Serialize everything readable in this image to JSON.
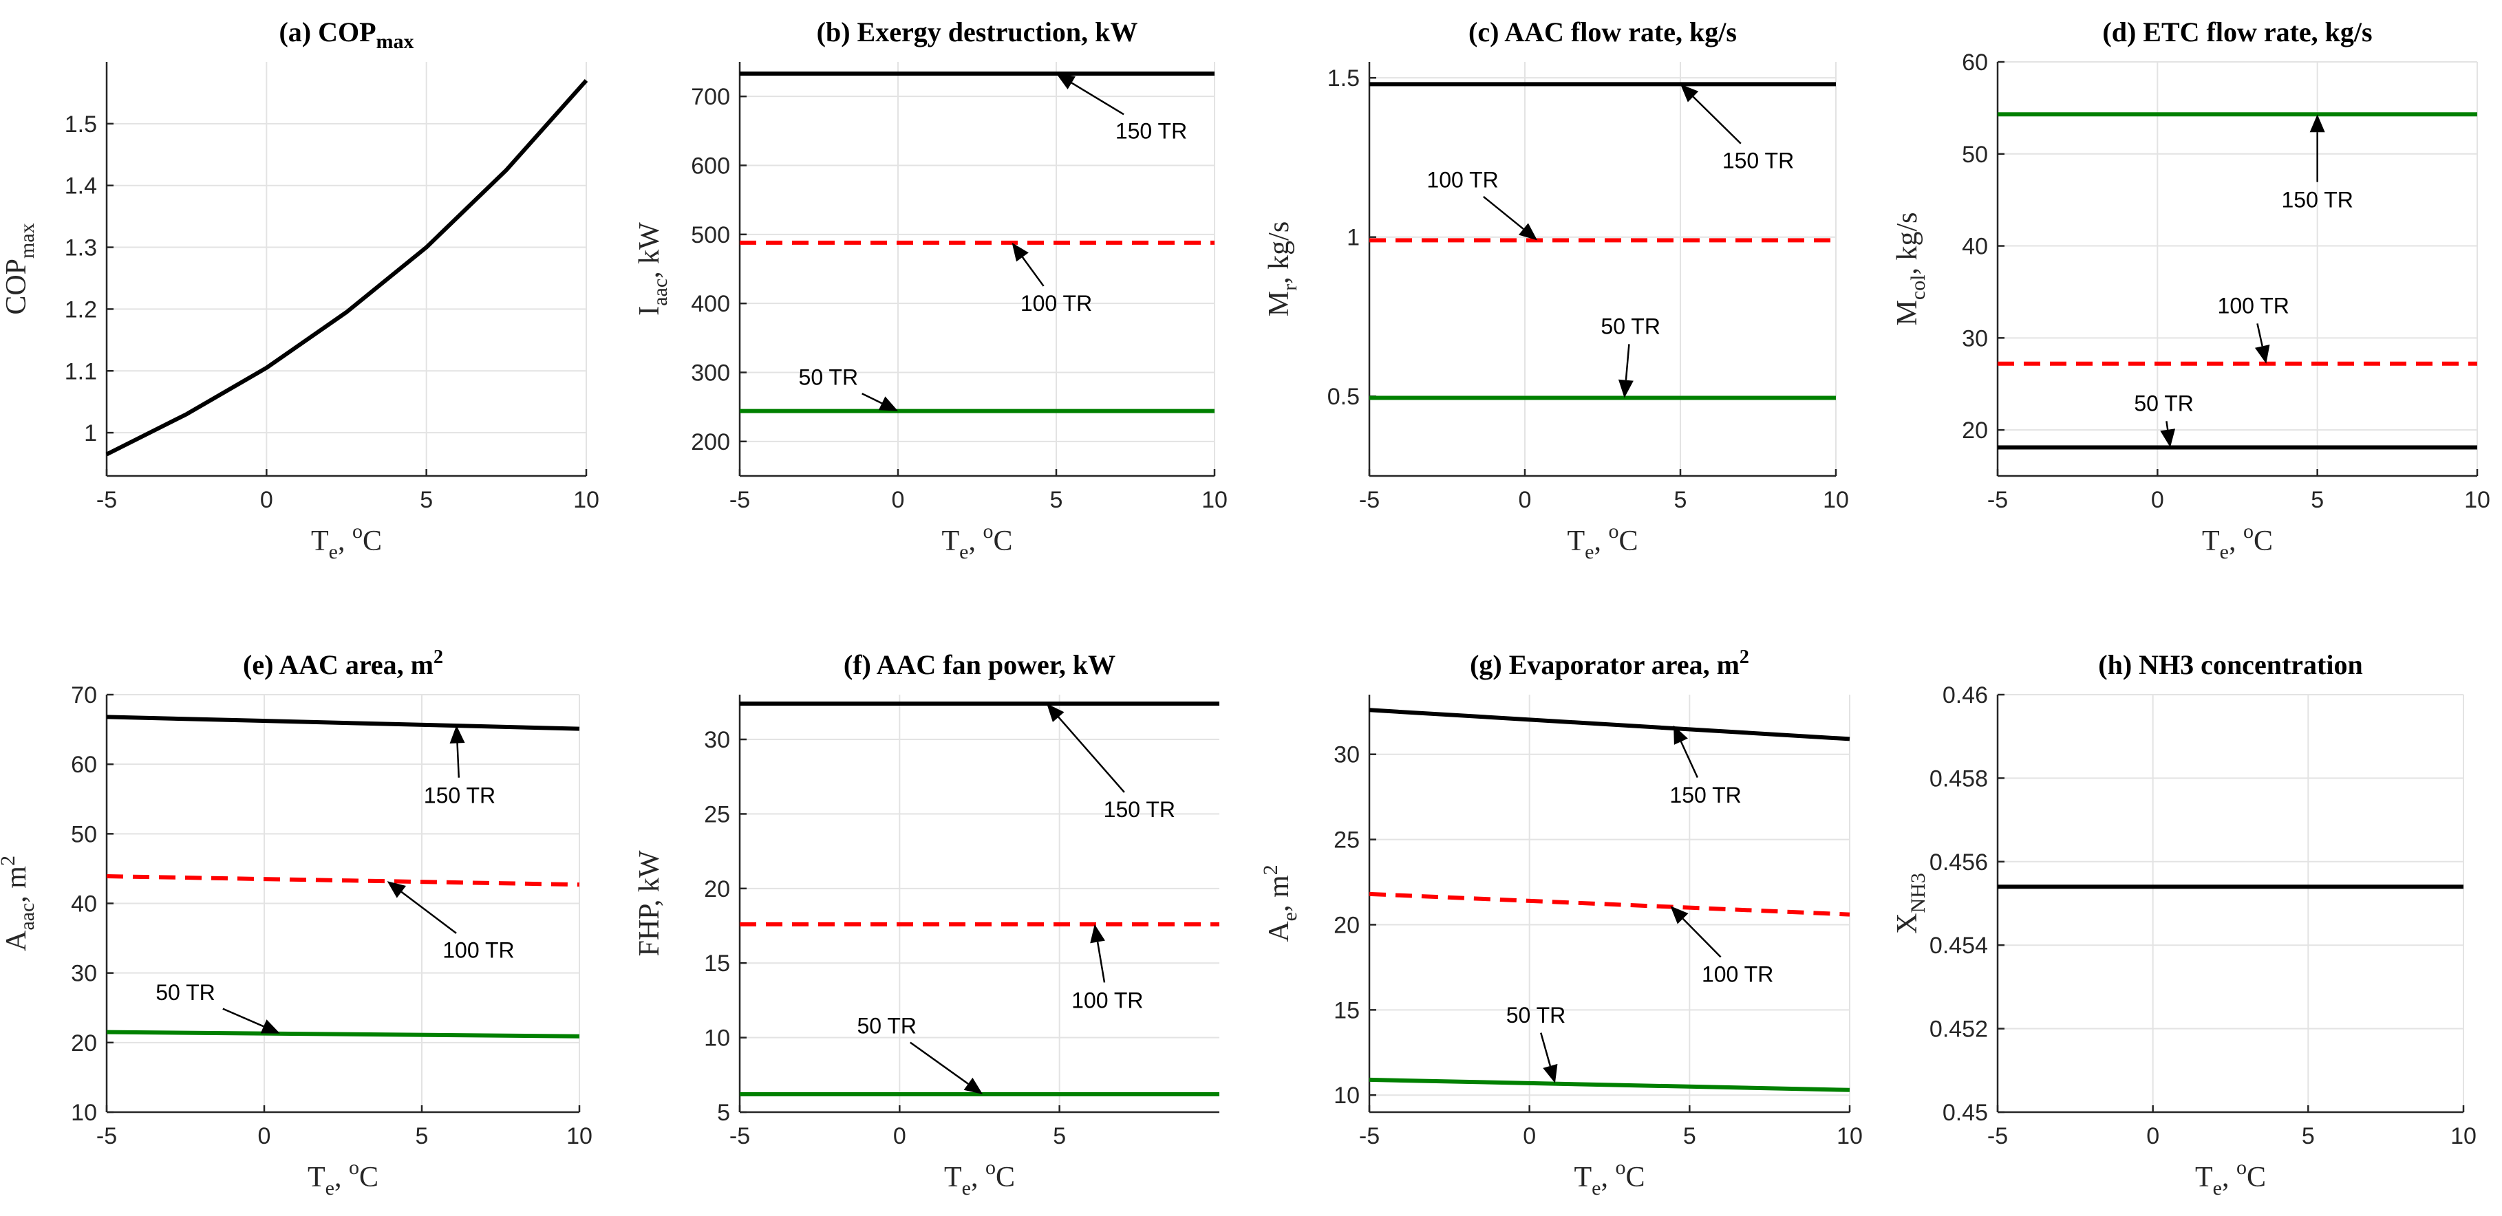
{
  "chart_data": [
    {
      "id": "a",
      "type": "line",
      "title": "(a) COP",
      "title_sub": "max",
      "xlabel_main": "T",
      "xlabel_sub": "e",
      "xlabel_sup": "o",
      "xlabel_tail": "C",
      "ylabel_main": "COP",
      "ylabel_sub": "max",
      "ylabel_tail": "",
      "xlim": [
        -5,
        10
      ],
      "ylim": [
        0.93,
        1.6
      ],
      "xticks": [
        -5,
        0,
        5,
        10
      ],
      "xtick_labels": [
        "-5",
        "0",
        "5",
        "10"
      ],
      "yticks": [
        1,
        1.1,
        1.2,
        1.3,
        1.4,
        1.5
      ],
      "ytick_labels": [
        "1",
        "1.1",
        "1.2",
        "1.3",
        "1.4",
        "1.5"
      ],
      "series": [
        {
          "name": "COPmax",
          "color": "#000000",
          "dash": "solid",
          "x": [
            -5,
            -2.5,
            0,
            2.5,
            5,
            7.5,
            10
          ],
          "y": [
            0.965,
            1.03,
            1.105,
            1.195,
            1.3,
            1.425,
            1.57
          ]
        }
      ],
      "annotations": []
    },
    {
      "id": "b",
      "type": "line",
      "title": "(b) Exergy destruction, kW",
      "xlabel_main": "T",
      "xlabel_sub": "e",
      "xlabel_sup": "o",
      "xlabel_tail": "C",
      "ylabel_main": "I",
      "ylabel_sub": "aac",
      "ylabel_tail": ", kW",
      "xlim": [
        -5,
        10
      ],
      "ylim": [
        150,
        750
      ],
      "xticks": [
        -5,
        0,
        5,
        10
      ],
      "xtick_labels": [
        "-5",
        "0",
        "5",
        "10"
      ],
      "yticks": [
        200,
        300,
        400,
        500,
        600,
        700
      ],
      "ytick_labels": [
        "200",
        "300",
        "400",
        "500",
        "600",
        "700"
      ],
      "series": [
        {
          "name": "150 TR",
          "color": "#000000",
          "dash": "solid",
          "x": [
            -5,
            10
          ],
          "y": [
            733,
            733
          ]
        },
        {
          "name": "100 TR",
          "color": "#ff0000",
          "dash": "dashed",
          "x": [
            -5,
            10
          ],
          "y": [
            488,
            488
          ]
        },
        {
          "name": "50 TR",
          "color": "#008000",
          "dash": "solid",
          "x": [
            -5,
            10
          ],
          "y": [
            244,
            244
          ]
        }
      ],
      "annotations": [
        {
          "text": "150 TR",
          "label_x": 8,
          "label_y": 650,
          "tip_x": 5,
          "tip_y": 733
        },
        {
          "text": "100 TR",
          "label_x": 5,
          "label_y": 400,
          "tip_x": 3.6,
          "tip_y": 488
        },
        {
          "text": "50 TR",
          "label_x": -2.2,
          "label_y": 293,
          "tip_x": 0,
          "tip_y": 244
        }
      ]
    },
    {
      "id": "c",
      "type": "line",
      "title": "(c) AAC flow rate, kg/s",
      "xlabel_main": "T",
      "xlabel_sub": "e",
      "xlabel_sup": "o",
      "xlabel_tail": "C",
      "ylabel_main": "M",
      "ylabel_sub": "r",
      "ylabel_tail": ", kg/s",
      "xlim": [
        -5,
        10
      ],
      "ylim": [
        0.25,
        1.55
      ],
      "xticks": [
        -5,
        0,
        5,
        10
      ],
      "xtick_labels": [
        "-5",
        "0",
        "5",
        "10"
      ],
      "yticks": [
        0.5,
        1,
        1.5
      ],
      "ytick_labels": [
        "0.5",
        "1",
        "1.5"
      ],
      "series": [
        {
          "name": "150 TR",
          "color": "#000000",
          "dash": "solid",
          "x": [
            -5,
            10
          ],
          "y": [
            1.48,
            1.48
          ]
        },
        {
          "name": "100 TR",
          "color": "#ff0000",
          "dash": "dashed",
          "x": [
            -5,
            10
          ],
          "y": [
            0.99,
            0.99
          ]
        },
        {
          "name": "50 TR",
          "color": "#008000",
          "dash": "solid",
          "x": [
            -5,
            10
          ],
          "y": [
            0.495,
            0.495
          ]
        }
      ],
      "annotations": [
        {
          "text": "150 TR",
          "label_x": 7.5,
          "label_y": 1.24,
          "tip_x": 5,
          "tip_y": 1.48
        },
        {
          "text": "100 TR",
          "label_x": -2,
          "label_y": 1.18,
          "tip_x": 0.4,
          "tip_y": 0.99
        },
        {
          "text": "50 TR",
          "label_x": 3.4,
          "label_y": 0.72,
          "tip_x": 3.2,
          "tip_y": 0.495
        }
      ]
    },
    {
      "id": "d",
      "type": "line",
      "title": "(d) ETC flow rate, kg/s",
      "xlabel_main": "T",
      "xlabel_sub": "e",
      "xlabel_sup": "o",
      "xlabel_tail": "C",
      "ylabel_main": "M",
      "ylabel_sub": "col",
      "ylabel_tail": ", kg/s",
      "xlim": [
        -5,
        10
      ],
      "ylim": [
        15,
        60
      ],
      "xticks": [
        -5,
        0,
        5,
        10
      ],
      "xtick_labels": [
        "-5",
        "0",
        "5",
        "10"
      ],
      "yticks": [
        20,
        30,
        40,
        50,
        60
      ],
      "ytick_labels": [
        "20",
        "30",
        "40",
        "50",
        "60"
      ],
      "series": [
        {
          "name": "150 TR",
          "color": "#008000",
          "dash": "solid",
          "x": [
            -5,
            10
          ],
          "y": [
            54.3,
            54.3
          ]
        },
        {
          "name": "100 TR",
          "color": "#ff0000",
          "dash": "dashed",
          "x": [
            -5,
            10
          ],
          "y": [
            27.2,
            27.2
          ]
        },
        {
          "name": "50 TR",
          "color": "#000000",
          "dash": "solid",
          "x": [
            -5,
            10
          ],
          "y": [
            18.1,
            18.1
          ]
        }
      ],
      "annotations": [
        {
          "text": "150 TR",
          "label_x": 5,
          "label_y": 45,
          "tip_x": 5,
          "tip_y": 54.3
        },
        {
          "text": "100 TR",
          "label_x": 3,
          "label_y": 33.5,
          "tip_x": 3.4,
          "tip_y": 27.2
        },
        {
          "text": "50 TR",
          "label_x": 0.2,
          "label_y": 22.9,
          "tip_x": 0.4,
          "tip_y": 18.1
        }
      ]
    },
    {
      "id": "e",
      "type": "line",
      "title": "(e) AAC area, m",
      "title_sup": "2",
      "xlabel_main": "T",
      "xlabel_sub": "e",
      "xlabel_sup": "o",
      "xlabel_tail": "C",
      "ylabel_main": "A",
      "ylabel_sub": "aac",
      "ylabel_tail": ", m",
      "ylabel_sup": "2",
      "xlim": [
        -5,
        10
      ],
      "ylim": [
        10,
        70
      ],
      "xticks": [
        -5,
        0,
        5,
        10
      ],
      "xtick_labels": [
        "-5",
        "0",
        "5",
        "10"
      ],
      "yticks": [
        10,
        20,
        30,
        40,
        50,
        60,
        70
      ],
      "ytick_labels": [
        "10",
        "20",
        "30",
        "40",
        "50",
        "60",
        "70"
      ],
      "series": [
        {
          "name": "150 TR",
          "color": "#000000",
          "dash": "solid",
          "x": [
            -5,
            10
          ],
          "y": [
            66.8,
            65.1
          ]
        },
        {
          "name": "100 TR",
          "color": "#ff0000",
          "dash": "dashed",
          "x": [
            -5,
            10
          ],
          "y": [
            43.9,
            42.7
          ]
        },
        {
          "name": "50 TR",
          "color": "#008000",
          "dash": "solid",
          "x": [
            -5,
            10
          ],
          "y": [
            21.5,
            20.9
          ]
        }
      ],
      "annotations": [
        {
          "text": "150 TR",
          "label_x": 6.2,
          "label_y": 55.5,
          "tip_x": 6.1,
          "tip_y": 65.6
        },
        {
          "text": "100 TR",
          "label_x": 6.8,
          "label_y": 33.3,
          "tip_x": 3.9,
          "tip_y": 43.2
        },
        {
          "text": "50 TR",
          "label_x": -2.5,
          "label_y": 27.2,
          "tip_x": 0.5,
          "tip_y": 21.3
        }
      ]
    },
    {
      "id": "f",
      "type": "line",
      "title": "(f) AAC fan power, kW",
      "xlabel_main": "T",
      "xlabel_sub": "e",
      "xlabel_sup": "o",
      "xlabel_tail": "C",
      "ylabel_main": "FHP, kW",
      "ylabel_sub": "",
      "ylabel_tail": "",
      "xlim": [
        -5,
        10
      ],
      "ylim": [
        5,
        33
      ],
      "xticks": [
        -5,
        0,
        5
      ],
      "xtick_labels": [
        "-5",
        "0",
        "5"
      ],
      "yticks": [
        5,
        10,
        15,
        20,
        25,
        30
      ],
      "ytick_labels": [
        "5",
        "10",
        "15",
        "20",
        "25",
        "30"
      ],
      "series": [
        {
          "name": "150 TR",
          "color": "#000000",
          "dash": "solid",
          "x": [
            -5,
            10
          ],
          "y": [
            32.4,
            32.4
          ]
        },
        {
          "name": "100 TR",
          "color": "#ff0000",
          "dash": "dashed",
          "x": [
            -5,
            10
          ],
          "y": [
            17.6,
            17.6
          ]
        },
        {
          "name": "50 TR",
          "color": "#008000",
          "dash": "solid",
          "x": [
            -5,
            10
          ],
          "y": [
            6.2,
            6.2
          ]
        }
      ],
      "annotations": [
        {
          "text": "150 TR",
          "label_x": 7.5,
          "label_y": 25.3,
          "tip_x": 4.6,
          "tip_y": 32.4
        },
        {
          "text": "100 TR",
          "label_x": 6.5,
          "label_y": 12.5,
          "tip_x": 6.1,
          "tip_y": 17.6
        },
        {
          "text": "50 TR",
          "label_x": -0.4,
          "label_y": 10.8,
          "tip_x": 2.6,
          "tip_y": 6.2
        }
      ]
    },
    {
      "id": "g",
      "type": "line",
      "title": "(g) Evaporator area, m",
      "title_sup": "2",
      "xlabel_main": "T",
      "xlabel_sub": "e",
      "xlabel_sup": "o",
      "xlabel_tail": "C",
      "ylabel_main": "A",
      "ylabel_sub": "e",
      "ylabel_tail": ", m",
      "ylabel_sup": "2",
      "xlim": [
        -5,
        10
      ],
      "ylim": [
        9,
        33.5
      ],
      "xticks": [
        -5,
        0,
        5,
        10
      ],
      "xtick_labels": [
        "-5",
        "0",
        "5",
        "10"
      ],
      "yticks": [
        10,
        15,
        20,
        25,
        30
      ],
      "ytick_labels": [
        "10",
        "15",
        "20",
        "25",
        "30"
      ],
      "series": [
        {
          "name": "150 TR",
          "color": "#000000",
          "dash": "solid",
          "x": [
            -5,
            10
          ],
          "y": [
            32.6,
            30.9
          ]
        },
        {
          "name": "100 TR",
          "color": "#ff0000",
          "dash": "dashed",
          "x": [
            -5,
            10
          ],
          "y": [
            21.8,
            20.6
          ]
        },
        {
          "name": "50 TR",
          "color": "#008000",
          "dash": "solid",
          "x": [
            -5,
            10
          ],
          "y": [
            10.9,
            10.3
          ]
        }
      ],
      "annotations": [
        {
          "text": "150 TR",
          "label_x": 5.5,
          "label_y": 27.6,
          "tip_x": 4.5,
          "tip_y": 31.7
        },
        {
          "text": "100 TR",
          "label_x": 6.5,
          "label_y": 17.1,
          "tip_x": 4.4,
          "tip_y": 21.1
        },
        {
          "text": "50 TR",
          "label_x": 0.2,
          "label_y": 14.7,
          "tip_x": 0.8,
          "tip_y": 10.7
        }
      ]
    },
    {
      "id": "h",
      "type": "line",
      "title": "(h) NH3 concentration",
      "xlabel_main": "T",
      "xlabel_sub": "e",
      "xlabel_sup": "o",
      "xlabel_tail": "C",
      "ylabel_main": "X",
      "ylabel_sub": "NH3",
      "ylabel_tail": "",
      "xlim": [
        -5,
        10
      ],
      "ylim": [
        0.45,
        0.46
      ],
      "xticks": [
        -5,
        0,
        5,
        10
      ],
      "xtick_labels": [
        "-5",
        "0",
        "5",
        "10"
      ],
      "yticks": [
        0.45,
        0.452,
        0.454,
        0.456,
        0.458,
        0.46
      ],
      "ytick_labels": [
        "0.45",
        "0.452",
        "0.454",
        "0.456",
        "0.458",
        "0.46"
      ],
      "series": [
        {
          "name": "XNH3",
          "color": "#000000",
          "dash": "solid",
          "x": [
            -5,
            10
          ],
          "y": [
            0.4554,
            0.4554
          ]
        }
      ],
      "annotations": []
    }
  ]
}
